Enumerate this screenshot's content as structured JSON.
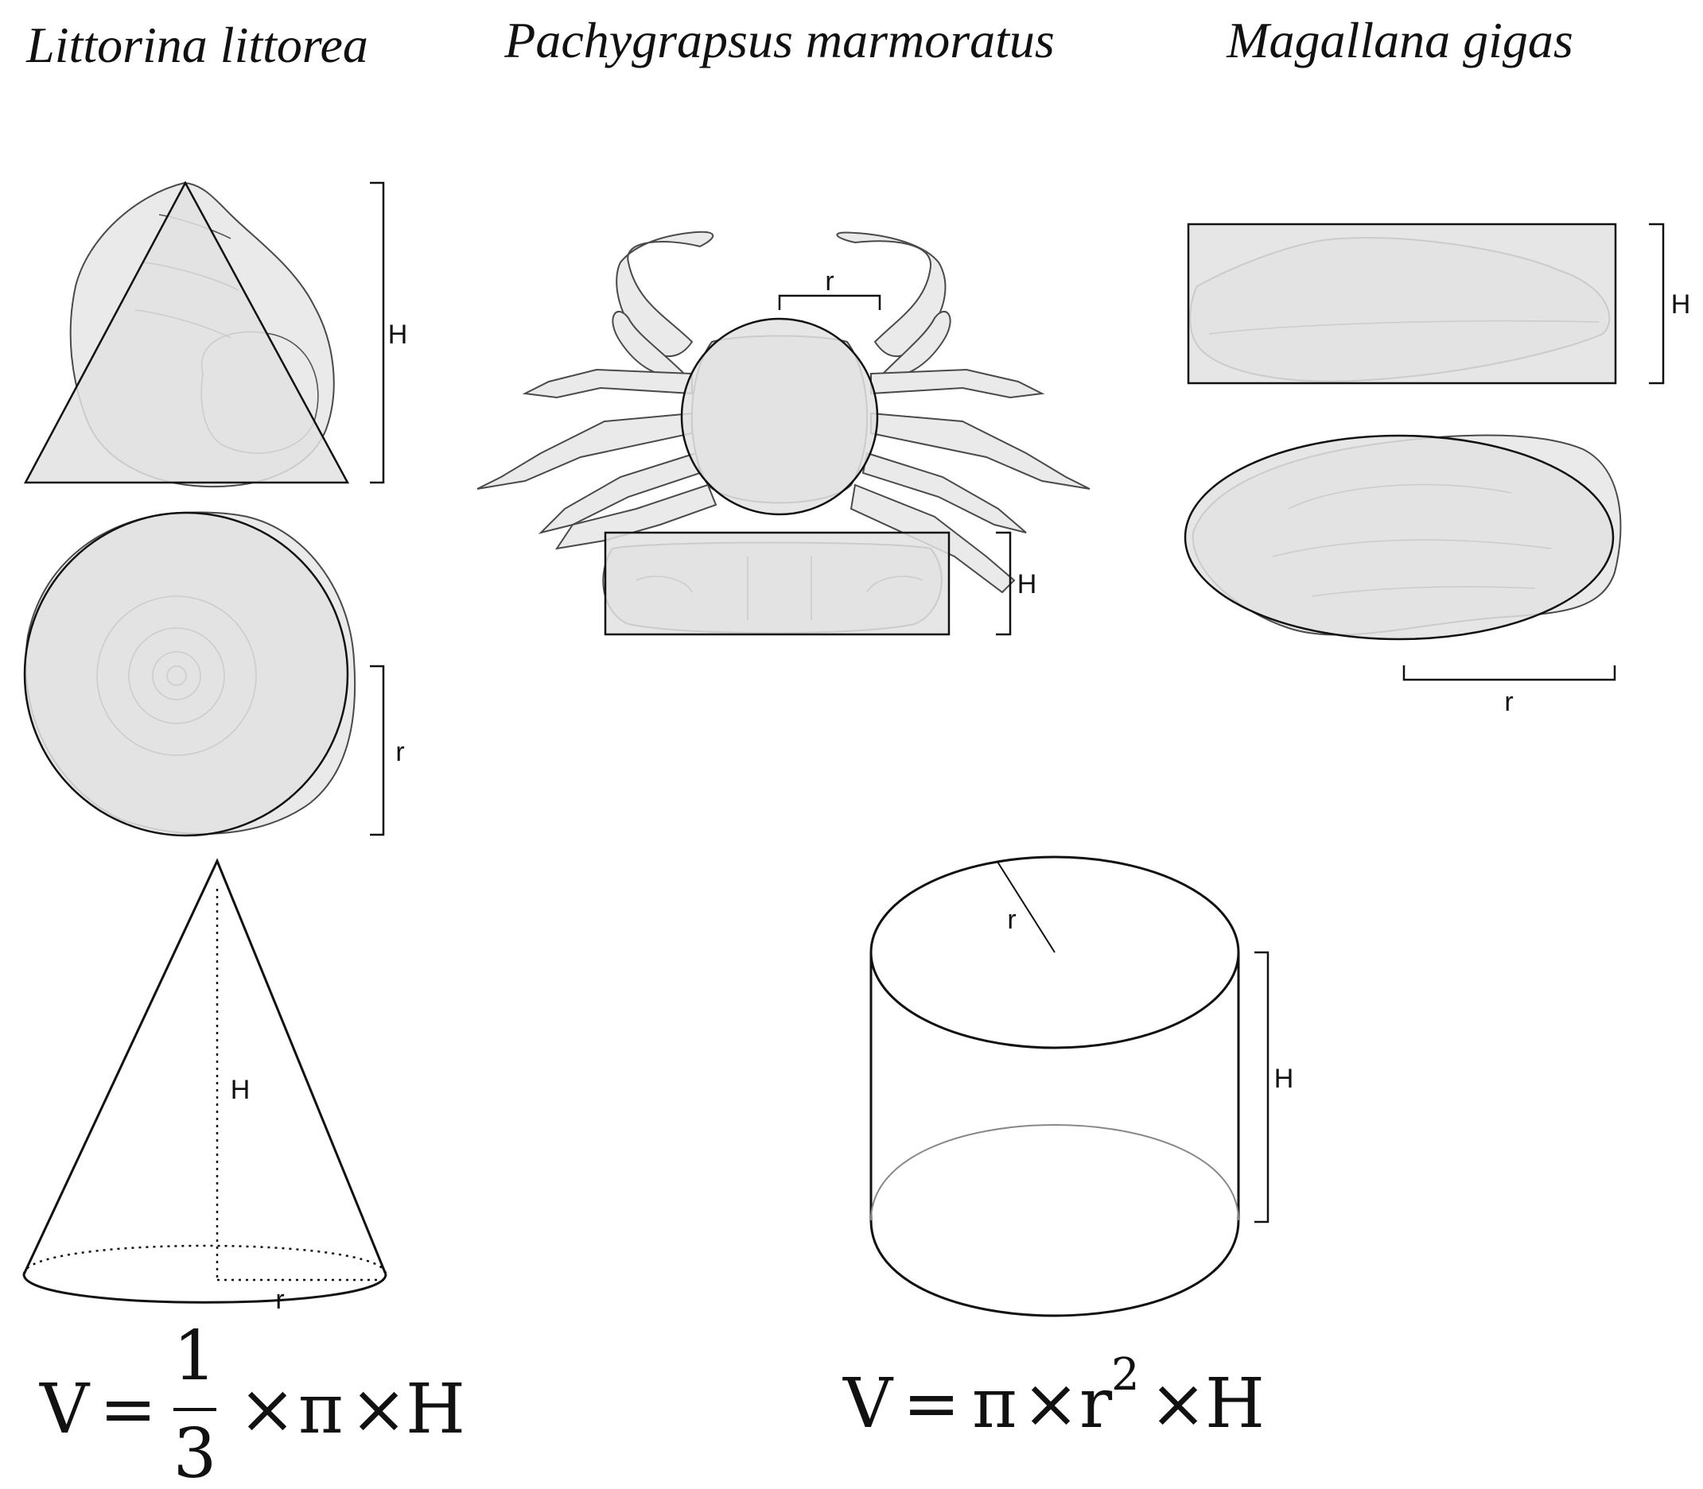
{
  "titles": {
    "snail": "Littorina littorea",
    "crab": "Pachygrapsus marmoratus",
    "oyster": "Magallana gigas"
  },
  "labels": {
    "height": "H",
    "radius": "r"
  },
  "formulas": {
    "cone": {
      "lhs": "V",
      "equals": "=",
      "numerator": "1",
      "denominator": "3",
      "times1": "×",
      "pi": "π",
      "times2": "×",
      "height": "H"
    },
    "cylinder": {
      "lhs": "V",
      "equals": "=",
      "pi": "π",
      "times1": "×",
      "radius": "r",
      "exponent": "2",
      "times2": "×",
      "height": "H"
    }
  }
}
